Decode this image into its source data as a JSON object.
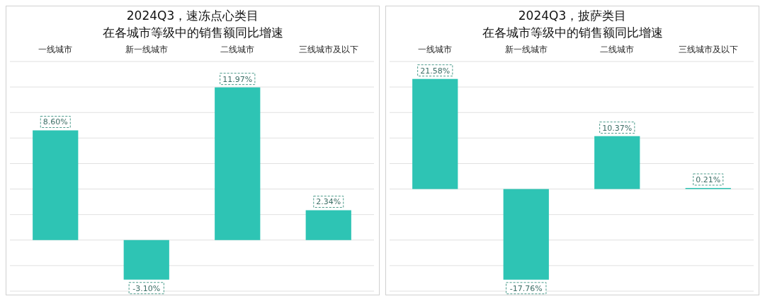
{
  "chart_data": [
    {
      "type": "bar",
      "title": "2024Q3，速冻点心类目",
      "subtitle": "在各城市等级中的销售额同比增速",
      "categories": [
        "一线城市",
        "新一线城市",
        "二线城市",
        "三线城市及以下"
      ],
      "values": [
        8.6,
        -3.1,
        11.97,
        2.34
      ],
      "value_labels": [
        "8.60%",
        "-3.10%",
        "11.97%",
        "2.34%"
      ],
      "color": "#2ec4b4",
      "ylim": [
        -4,
        14
      ],
      "yticks": [
        {
          "value": -4,
          "label": null
        },
        {
          "value": -2,
          "label": null
        },
        {
          "value": 0,
          "label": null
        },
        {
          "value": 2,
          "label": null
        },
        {
          "value": 4,
          "label": null
        },
        {
          "value": 6,
          "label": null
        },
        {
          "value": 8,
          "label": null
        },
        {
          "value": 10,
          "label": null
        },
        {
          "value": 12,
          "label": null
        },
        {
          "value": 14,
          "label": null
        }
      ],
      "grid": "y",
      "tick_labels": "x"
    },
    {
      "type": "bar",
      "title": "2024Q3，披萨类目",
      "subtitle": "在各城市等级中的销售额同比增速",
      "categories": [
        "一线城市",
        "新一线城市",
        "二线城市",
        "三线城市及以下"
      ],
      "values": [
        21.58,
        -17.76,
        10.37,
        0.21
      ],
      "value_labels": [
        "21.58%",
        "-17.76%",
        "10.37%",
        "0.21%"
      ],
      "color": "#2ec4b4",
      "ylim": [
        -20,
        25
      ],
      "yticks": [
        {
          "value": -20,
          "label": null
        },
        {
          "value": -15,
          "label": null
        },
        {
          "value": -10,
          "label": null
        },
        {
          "value": -5,
          "label": null
        },
        {
          "value": 0,
          "label": null
        },
        {
          "value": 5,
          "label": null
        },
        {
          "value": 10,
          "label": null
        },
        {
          "value": 15,
          "label": null
        },
        {
          "value": 20,
          "label": null
        },
        {
          "value": 25,
          "label": null
        }
      ],
      "grid": "y",
      "tick_labels": "x"
    }
  ]
}
